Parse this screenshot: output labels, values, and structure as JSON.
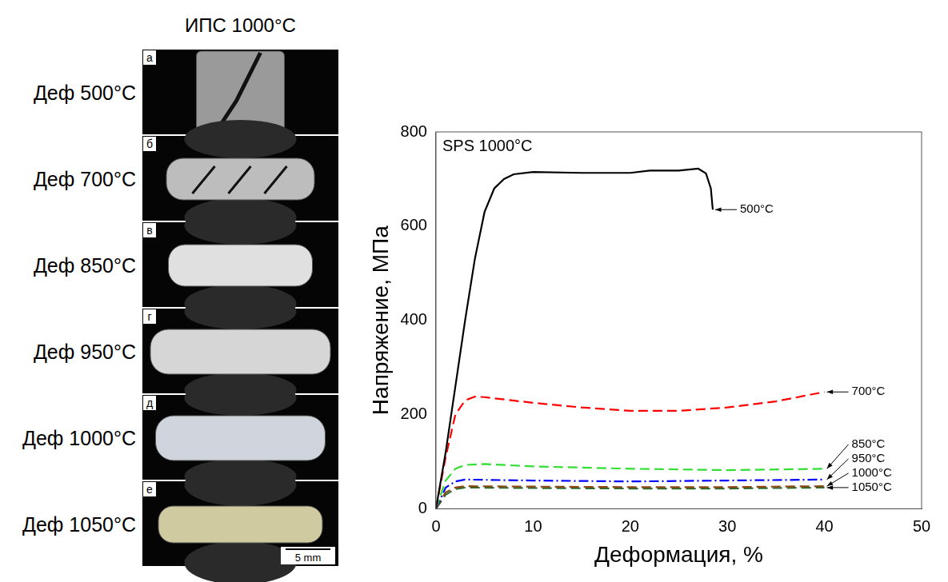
{
  "photo_panel": {
    "title": "ИПС 1000°C",
    "rows": [
      {
        "letter": "а",
        "label": "Деф 500°C"
      },
      {
        "letter": "б",
        "label": "Деф 700°C"
      },
      {
        "letter": "в",
        "label": "Деф 850°C"
      },
      {
        "letter": "г",
        "label": "Деф 950°C"
      },
      {
        "letter": "д",
        "label": "Деф 1000°C"
      },
      {
        "letter": "е",
        "label": "Деф 1050°C"
      }
    ],
    "scale_bar": "5 mm"
  },
  "chart_data": {
    "type": "line",
    "title": "SPS 1000°C",
    "x_label": "Деформация, %",
    "y_label": "Напряжение, МПа",
    "xlim": [
      0,
      50
    ],
    "xticks": [
      0,
      10,
      20,
      30,
      40,
      50
    ],
    "ylim": [
      0,
      800
    ],
    "yticks": [
      0,
      200,
      400,
      600,
      800
    ],
    "grid": false,
    "series": [
      {
        "name": "500°C",
        "color": "#000000",
        "line_style": "solid",
        "x": [
          0,
          1,
          2,
          3,
          4,
          5,
          6,
          7,
          8,
          10,
          15,
          20,
          22,
          25,
          27,
          27.8,
          28.3,
          28.5
        ],
        "values": [
          0,
          120,
          260,
          400,
          530,
          630,
          680,
          700,
          710,
          715,
          713,
          713,
          718,
          718,
          722,
          712,
          680,
          635
        ]
      },
      {
        "name": "700°C",
        "color": "#ff0000",
        "line_style": "dashed",
        "x": [
          0,
          1,
          2,
          3,
          4,
          5,
          7,
          10,
          15,
          20,
          25,
          30,
          35,
          40
        ],
        "values": [
          0,
          110,
          200,
          230,
          238,
          237,
          232,
          225,
          215,
          208,
          208,
          215,
          228,
          248
        ]
      },
      {
        "name": "850°C",
        "color": "#33dd33",
        "line_style": "dashed",
        "x": [
          0,
          1,
          2,
          3,
          5,
          10,
          20,
          30,
          40
        ],
        "values": [
          0,
          60,
          85,
          93,
          95,
          90,
          85,
          82,
          85
        ]
      },
      {
        "name": "950°C",
        "color": "#0000ff",
        "line_style": "dashdot",
        "x": [
          0,
          1,
          2,
          3,
          10,
          20,
          30,
          40
        ],
        "values": [
          0,
          45,
          58,
          62,
          60,
          58,
          60,
          62
        ]
      },
      {
        "name": "1000°C",
        "color": "#8b4513",
        "line_style": "dashed",
        "x": [
          0,
          1,
          2,
          3,
          10,
          20,
          30,
          40
        ],
        "values": [
          0,
          35,
          45,
          48,
          47,
          46,
          46,
          48
        ]
      },
      {
        "name": "1050°C",
        "color": "#2e6b2e",
        "line_style": "dashed",
        "x": [
          0,
          1,
          2,
          3,
          10,
          20,
          30,
          40
        ],
        "values": [
          0,
          30,
          42,
          45,
          44,
          43,
          43,
          45
        ]
      }
    ]
  }
}
